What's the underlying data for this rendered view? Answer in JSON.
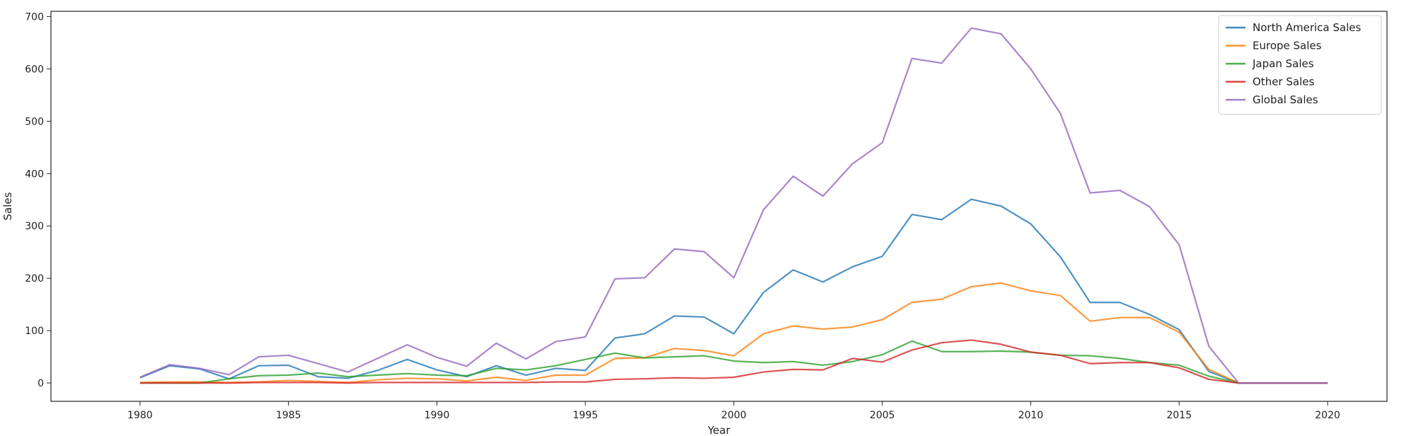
{
  "chart_data": {
    "type": "line",
    "title": "",
    "xlabel": "Year",
    "ylabel": "Sales",
    "xlim": [
      1977,
      2022
    ],
    "ylim": [
      -35,
      710
    ],
    "xticks": [
      1980,
      1985,
      1990,
      1995,
      2000,
      2005,
      2010,
      2015,
      2020
    ],
    "yticks": [
      0,
      100,
      200,
      300,
      400,
      500,
      600,
      700
    ],
    "grid": false,
    "legend_position": "top-right",
    "x": [
      1980,
      1981,
      1982,
      1983,
      1984,
      1985,
      1986,
      1987,
      1988,
      1989,
      1990,
      1991,
      1992,
      1993,
      1994,
      1995,
      1996,
      1997,
      1998,
      1999,
      2000,
      2001,
      2002,
      2003,
      2004,
      2005,
      2006,
      2007,
      2008,
      2009,
      2010,
      2011,
      2012,
      2013,
      2014,
      2015,
      2016,
      2017,
      2018,
      2019,
      2020
    ],
    "series": [
      {
        "name": "North America Sales",
        "color": "#1f77b4",
        "values": [
          10,
          33,
          27,
          8,
          33,
          34,
          12,
          9,
          24,
          45,
          25,
          12,
          33,
          15,
          28,
          24,
          86,
          94,
          128,
          126,
          94,
          173,
          216,
          193,
          222,
          242,
          322,
          312,
          351,
          338,
          304,
          241,
          154,
          154,
          131,
          102,
          22,
          0,
          0,
          0,
          0
        ]
      },
      {
        "name": "Europe Sales",
        "color": "#ff7f0e",
        "values": [
          1,
          2,
          2,
          1,
          2,
          5,
          3,
          1,
          6,
          9,
          8,
          4,
          11,
          5,
          15,
          15,
          47,
          48,
          66,
          62,
          52,
          94,
          109,
          103,
          107,
          121,
          154,
          160,
          184,
          191,
          176,
          167,
          118,
          125,
          125,
          97,
          26,
          0,
          0,
          0,
          0
        ]
      },
      {
        "name": "Japan Sales",
        "color": "#2ca02c",
        "values": [
          0,
          0,
          0,
          8,
          14,
          15,
          19,
          12,
          15,
          18,
          15,
          14,
          28,
          25,
          33,
          45,
          57,
          48,
          50,
          52,
          42,
          39,
          41,
          34,
          41,
          54,
          80,
          60,
          60,
          61,
          59,
          53,
          52,
          47,
          39,
          34,
          13,
          0,
          0,
          0,
          0
        ]
      },
      {
        "name": "Other Sales",
        "color": "#d62728",
        "values": [
          0,
          0,
          0,
          0,
          1,
          1,
          1,
          0,
          1,
          1,
          1,
          1,
          1,
          1,
          2,
          2,
          7,
          8,
          10,
          9,
          11,
          21,
          26,
          25,
          47,
          40,
          63,
          77,
          82,
          74,
          59,
          53,
          37,
          39,
          39,
          29,
          7,
          0,
          0,
          0,
          0
        ]
      },
      {
        "name": "Global Sales",
        "color": "#9467bd",
        "values": [
          11,
          35,
          28,
          16,
          50,
          53,
          37,
          21,
          47,
          73,
          49,
          32,
          76,
          46,
          79,
          88,
          199,
          201,
          256,
          251,
          201,
          331,
          395,
          357,
          419,
          459,
          620,
          611,
          678,
          667,
          600,
          515,
          363,
          368,
          337,
          264,
          70,
          0,
          0,
          0,
          0
        ]
      }
    ]
  }
}
